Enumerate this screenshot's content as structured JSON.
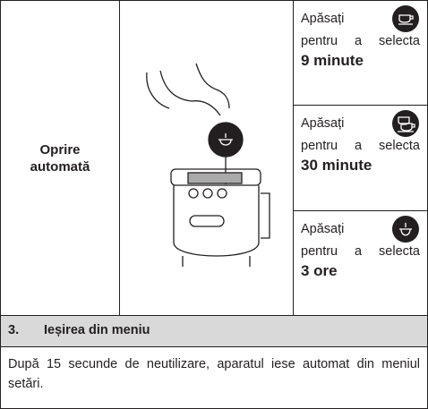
{
  "table": {
    "label": "Oprire automată",
    "options": [
      {
        "action": "Apăsați",
        "text": "pentru a selecta",
        "value": "9 minute"
      },
      {
        "action": "Apăsați",
        "text": "pentru a selecta",
        "value": "30 minute"
      },
      {
        "action": "Apăsați",
        "text": "pentru a selecta",
        "value": "3 ore"
      }
    ]
  },
  "section": {
    "number": "3.",
    "title": "Ieșirea din meniu"
  },
  "paragraph": "După 15 secunde de neutilizare, aparatul iese automat din meniul setări."
}
